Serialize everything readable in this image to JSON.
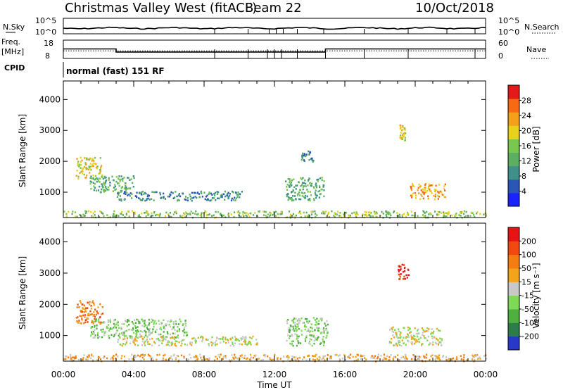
{
  "header": {
    "title": "Christmas Valley West (fitACF)",
    "beam": "Beam 22",
    "date": "10/Oct/2018"
  },
  "strip": {
    "nsky_label": "N.Sky",
    "nsearch_label": "N.Search",
    "noise_ticks": [
      "10^5",
      "10^0"
    ],
    "freq_label_1": "Freq.",
    "freq_label_2": "[MHz]",
    "freq_ticks": [
      "18",
      "8"
    ],
    "nave_label": "Nave",
    "nave_ticks": [
      "60",
      "0"
    ],
    "cpid_label": "CPID",
    "cpid_text": "normal (fast) 151 RF"
  },
  "chart_data": [
    {
      "type": "heatmap",
      "name": "power",
      "ylabel": "Slant Range [km]",
      "yticks": [
        1000,
        2000,
        3000,
        4000
      ],
      "ylim": [
        180,
        4600
      ],
      "xlim": [
        0,
        24
      ],
      "colorbar": {
        "label": "Power [dB]",
        "ticks": [
          "28",
          "24",
          "20",
          "16",
          "12",
          "8",
          "4"
        ],
        "colors": [
          "#1a22ff",
          "#2c56b6",
          "#3f8f8a",
          "#5cae62",
          "#7ac74f",
          "#e9d21b",
          "#f3a11a",
          "#f56a12",
          "#e21a1a"
        ]
      },
      "regions": [
        {
          "x": [
            0.7,
            2.2
          ],
          "y": [
            1450,
            2150
          ],
          "level": 5
        },
        {
          "x": [
            1.5,
            4.0
          ],
          "y": [
            1000,
            1550
          ],
          "level": 3
        },
        {
          "x": [
            3.0,
            10.2
          ],
          "y": [
            750,
            1050
          ],
          "level": 2
        },
        {
          "x": [
            12.6,
            14.8
          ],
          "y": [
            750,
            1500
          ],
          "level": 3
        },
        {
          "x": [
            13.5,
            14.2
          ],
          "y": [
            2000,
            2400
          ],
          "level": 2
        },
        {
          "x": [
            19.7,
            21.7
          ],
          "y": [
            800,
            1300
          ],
          "level": 6
        },
        {
          "x": [
            19.1,
            19.4
          ],
          "y": [
            2700,
            3200
          ],
          "level": 5
        },
        {
          "x": [
            0,
            24
          ],
          "y": [
            200,
            420
          ],
          "level": 4
        }
      ]
    },
    {
      "type": "heatmap",
      "name": "velocity",
      "ylabel": "Slant Range [km]",
      "xlabel": "Time UT",
      "xticks": [
        "00:00",
        "04:00",
        "08:00",
        "12:00",
        "16:00",
        "20:00",
        "00:00"
      ],
      "yticks": [
        1000,
        2000,
        3000,
        4000
      ],
      "ylim": [
        180,
        4600
      ],
      "xlim": [
        0,
        24
      ],
      "colorbar": {
        "label": "Velocity [m s⁻¹]",
        "ticks": [
          "200",
          "100",
          "50",
          "15",
          "-15",
          "-50",
          "-100",
          "-200"
        ],
        "colors": [
          "#2838c8",
          "#2d7d4b",
          "#4fb040",
          "#7ed957",
          "#c8c8c8",
          "#f2a51a",
          "#f47d12",
          "#f04a12",
          "#e61414"
        ]
      },
      "regions": [
        {
          "x": [
            0.7,
            2.2
          ],
          "y": [
            1400,
            2150
          ],
          "level": 6
        },
        {
          "x": [
            1.5,
            7.0
          ],
          "y": [
            950,
            1550
          ],
          "level": 3
        },
        {
          "x": [
            3.0,
            11.0
          ],
          "y": [
            700,
            1000
          ],
          "level": 4
        },
        {
          "x": [
            12.6,
            15.0
          ],
          "y": [
            700,
            1600
          ],
          "level": 3
        },
        {
          "x": [
            18.5,
            21.5
          ],
          "y": [
            700,
            1300
          ],
          "level": 4
        },
        {
          "x": [
            19.0,
            19.6
          ],
          "y": [
            2800,
            3300
          ],
          "level": 8
        },
        {
          "x": [
            0,
            24
          ],
          "y": [
            200,
            420
          ],
          "level": 5
        }
      ]
    }
  ]
}
